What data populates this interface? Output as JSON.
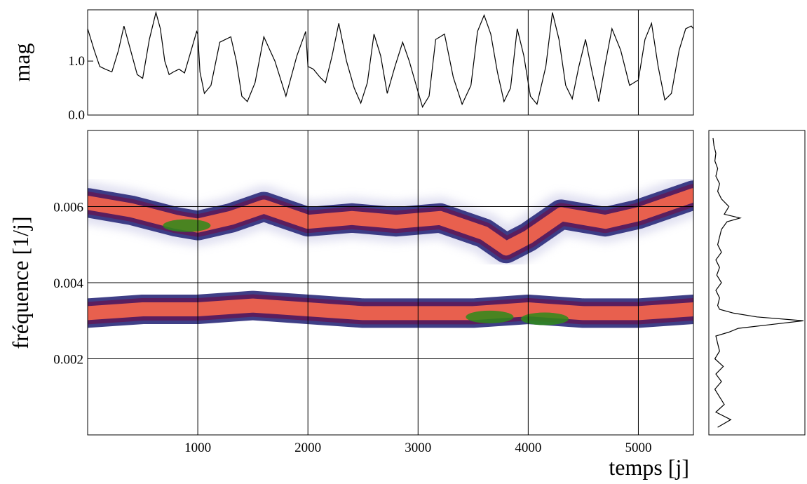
{
  "chart_data": [
    {
      "type": "line",
      "panel": "light-curve",
      "ylabel": "mag",
      "xlim": [
        0,
        5500
      ],
      "ylim": [
        0.0,
        1.95
      ],
      "yticks": [
        {
          "value": 0.0,
          "label": "0.0"
        },
        {
          "value": 1.0,
          "label": "1.0"
        }
      ],
      "vgrid": [
        1000,
        2000,
        3000,
        4000,
        5000
      ],
      "series": [
        {
          "x": [
            0,
            60,
            110,
            160,
            220,
            280,
            330,
            390,
            450,
            500,
            560,
            620,
            660,
            700,
            740,
            780,
            830,
            880,
            940,
            990,
            1000,
            1020,
            1060,
            1120,
            1200,
            1300,
            1350,
            1400,
            1450,
            1520,
            1600,
            1700,
            1800,
            1900,
            1980,
            2000,
            2050,
            2110,
            2160,
            2220,
            2280,
            2350,
            2420,
            2480,
            2540,
            2600,
            2660,
            2720,
            2790,
            2860,
            2920,
            2990,
            3040,
            3100,
            3160,
            3240,
            3320,
            3400,
            3480,
            3540,
            3600,
            3660,
            3720,
            3780,
            3840,
            3900,
            3960,
            4020,
            4080,
            4160,
            4220,
            4280,
            4340,
            4400,
            4460,
            4520,
            4580,
            4640,
            4700,
            4760,
            4840,
            4920,
            5000,
            5060,
            5120,
            5180,
            5240,
            5300,
            5370,
            5430,
            5480,
            5500
          ],
          "y": [
            1.6,
            1.2,
            0.9,
            0.85,
            0.8,
            1.2,
            1.65,
            1.2,
            0.75,
            0.68,
            1.4,
            1.9,
            1.6,
            1.0,
            0.75,
            0.8,
            0.85,
            0.78,
            1.2,
            1.55,
            1.5,
            0.8,
            0.4,
            0.55,
            1.35,
            1.45,
            1.0,
            0.35,
            0.25,
            0.6,
            1.45,
            1.0,
            0.35,
            1.1,
            1.55,
            0.9,
            0.85,
            0.7,
            0.6,
            1.1,
            1.7,
            1.0,
            0.5,
            0.22,
            0.6,
            1.5,
            1.1,
            0.4,
            0.9,
            1.35,
            1.0,
            0.5,
            0.15,
            0.35,
            1.4,
            1.5,
            0.7,
            0.2,
            0.55,
            1.55,
            1.85,
            1.5,
            0.8,
            0.25,
            0.5,
            1.6,
            1.1,
            0.35,
            0.2,
            0.9,
            1.9,
            1.4,
            0.55,
            0.3,
            0.9,
            1.4,
            0.8,
            0.25,
            0.95,
            1.6,
            1.2,
            0.55,
            0.65,
            1.4,
            1.7,
            0.9,
            0.28,
            0.4,
            1.2,
            1.6,
            1.65,
            1.6
          ]
        }
      ]
    },
    {
      "type": "heatmap",
      "panel": "time-frequency",
      "xlabel": "temps [j]",
      "ylabel": "fréquence [1/j]",
      "xlim": [
        0,
        5500
      ],
      "ylim": [
        0.0,
        0.008
      ],
      "xticks": [
        {
          "value": 1000,
          "label": "1000"
        },
        {
          "value": 2000,
          "label": "2000"
        },
        {
          "value": 3000,
          "label": "3000"
        },
        {
          "value": 4000,
          "label": "4000"
        },
        {
          "value": 5000,
          "label": "5000"
        }
      ],
      "yticks": [
        {
          "value": 0.002,
          "label": "0.002"
        },
        {
          "value": 0.004,
          "label": "0.004"
        },
        {
          "value": 0.006,
          "label": "0.006"
        }
      ],
      "grid": true,
      "colorscale": [
        "#ffffff",
        "#c8c8e6",
        "#2a2a7a",
        "#5a1e5e",
        "#e8604e",
        "#2e8b1a"
      ],
      "ridges": [
        {
          "x": [
            0,
            400,
            800,
            1000,
            1300,
            1600,
            2000,
            2400,
            2800,
            3200,
            3600,
            3800,
            4000,
            4300,
            4700,
            5000,
            5500
          ],
          "freq": [
            0.0061,
            0.0059,
            0.0056,
            0.0055,
            0.0057,
            0.006,
            0.0056,
            0.0057,
            0.0056,
            0.0057,
            0.0053,
            0.0049,
            0.0052,
            0.0058,
            0.0056,
            0.0058,
            0.0063
          ]
        },
        {
          "x": [
            0,
            500,
            1000,
            1500,
            2000,
            2500,
            3000,
            3500,
            4000,
            4500,
            5000,
            5500
          ],
          "freq": [
            0.0032,
            0.0033,
            0.0033,
            0.0034,
            0.0033,
            0.0032,
            0.0032,
            0.0032,
            0.0033,
            0.0032,
            0.0032,
            0.0033
          ]
        }
      ],
      "peaks": [
        {
          "x": 900,
          "freq": 0.0055
        },
        {
          "x": 4150,
          "freq": 0.00305
        },
        {
          "x": 3650,
          "freq": 0.0031
        }
      ]
    },
    {
      "type": "line",
      "panel": "global-spectrum",
      "orientation": "vertical",
      "ylim": [
        0.0,
        0.008
      ],
      "series": [
        {
          "freq": [
            0.0002,
            0.0004,
            0.0006,
            0.0008,
            0.001,
            0.0012,
            0.0014,
            0.0016,
            0.0018,
            0.002,
            0.0022,
            0.0024,
            0.0026,
            0.0027,
            0.0028,
            0.0029,
            0.003,
            0.0031,
            0.0032,
            0.0033,
            0.0034,
            0.0036,
            0.0038,
            0.004,
            0.0042,
            0.0044,
            0.0046,
            0.0048,
            0.005,
            0.0052,
            0.0054,
            0.0056,
            0.0057,
            0.0058,
            0.006,
            0.0062,
            0.0064,
            0.0066,
            0.0068,
            0.007,
            0.0072,
            0.0074,
            0.0076,
            0.0078
          ],
          "power": [
            0.08,
            0.22,
            0.06,
            0.15,
            0.1,
            0.05,
            0.12,
            0.06,
            0.14,
            0.05,
            0.1,
            0.08,
            0.06,
            0.2,
            0.3,
            0.65,
            1.0,
            0.5,
            0.25,
            0.1,
            0.08,
            0.1,
            0.06,
            0.12,
            0.07,
            0.1,
            0.06,
            0.12,
            0.08,
            0.1,
            0.12,
            0.18,
            0.32,
            0.15,
            0.2,
            0.12,
            0.08,
            0.1,
            0.06,
            0.08,
            0.05,
            0.06,
            0.04,
            0.03
          ]
        }
      ]
    }
  ]
}
